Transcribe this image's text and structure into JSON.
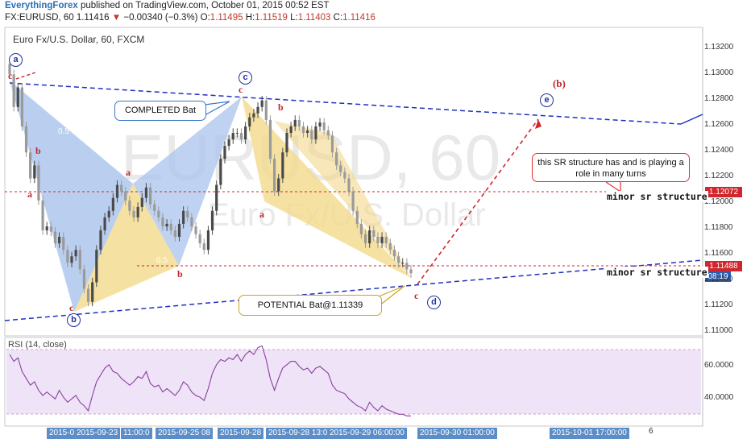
{
  "header": {
    "author": "EverythingForex",
    "published": "published on TradingView.com, October 01, 2015 00:52 EST",
    "symbol": "FX:EURUSD, 60",
    "last": "1.11416",
    "change": "−0.00340 (−0.3%)",
    "o_label": "O:",
    "o": "1.11495",
    "h_label": "H:",
    "h": "1.11519",
    "l_label": "L:",
    "l": "1.11403",
    "c_label": "C:",
    "c": "1.11416"
  },
  "chart_title": "Euro Fx/U.S. Dollar, 60, FXCM",
  "watermark": {
    "symbol": "EURUSD, 60",
    "name": "Euro Fx/U.S. Dollar"
  },
  "rsi_title": "RSI (14, close)",
  "annotations": {
    "completed": "COMPLETED Bat",
    "sr_note": "this SR structure has and is playing a role in many turns",
    "potential": "POTENTIAL Bat@1.11339",
    "minor_sr_1": "minor sr structure",
    "minor_sr_2": "minor sr structure"
  },
  "wave_points": {
    "a": "a",
    "b": "b",
    "c": "c",
    "d": "d",
    "e": "e",
    "b_paren": "(b)"
  },
  "price_tags": {
    "upper": "1.12072",
    "lower": "1.11488",
    "time": "08:19"
  },
  "y_axis_labels": [
    "1.13200",
    "1.13000",
    "1.12800",
    "1.12600",
    "1.12400",
    "1.12200",
    "1.12000",
    "1.11800",
    "1.11600",
    "1.11400",
    "1.11200",
    "1.11000"
  ],
  "rsi_axis_labels": [
    "60.0000",
    "40.0000"
  ],
  "x_axis_labels": [
    "2015-0",
    "2015-09-23",
    "11:00:0",
    "2015-09-25 08",
    "2015-09-28",
    "2015-09-28 13:0",
    "2015-09-29 06:00:00",
    "2015-09-30 01:00:00",
    "2015-10-01 17:00:00",
    "6"
  ],
  "fib_labels": [
    "0.5",
    "0.5"
  ],
  "colors": {
    "bull": "#4a4a4a",
    "bear": "#9a9a9a",
    "accent_blue": "#1f2fc4",
    "accent_red": "#d0262d",
    "bat_blue": "#a9c3ec",
    "bat_yellow": "#f3d98a",
    "rsi_band": "#efe3f7",
    "rsi_line": "#8a3f9e"
  },
  "chart_data": {
    "type": "line",
    "title": "Euro Fx/U.S. Dollar, 60, FXCM",
    "xlabel": "",
    "ylabel": "",
    "ylim": [
      1.1095,
      1.133
    ],
    "series": [
      {
        "name": "EURUSD",
        "values": [
          1.1295,
          1.127,
          1.1285,
          1.1255,
          1.1235,
          1.1215,
          1.1225,
          1.1198,
          1.1175,
          1.1178,
          1.1174,
          1.1165,
          1.117,
          1.116,
          1.115,
          1.1155,
          1.116,
          1.1145,
          1.113,
          1.112,
          1.1135,
          1.116,
          1.1175,
          1.1185,
          1.119,
          1.12,
          1.121,
          1.1205,
          1.1198,
          1.119,
          1.1185,
          1.1193,
          1.12,
          1.1208,
          1.1195,
          1.119,
          1.1185,
          1.1178,
          1.118,
          1.1175,
          1.117,
          1.118,
          1.119,
          1.1185,
          1.1178,
          1.1172,
          1.1165,
          1.116,
          1.1175,
          1.119,
          1.121,
          1.123,
          1.124,
          1.1245,
          1.125,
          1.125,
          1.1245,
          1.1255,
          1.1262,
          1.1265,
          1.127,
          1.1275,
          1.126,
          1.123,
          1.1205,
          1.1215,
          1.1235,
          1.125,
          1.1255,
          1.126,
          1.1255,
          1.125,
          1.1252,
          1.1245,
          1.1255,
          1.1258,
          1.1252,
          1.1248,
          1.1235,
          1.1225,
          1.122,
          1.1215,
          1.1205,
          1.119,
          1.118,
          1.1172,
          1.1165,
          1.1175,
          1.117,
          1.1165,
          1.117,
          1.1165,
          1.116,
          1.1155,
          1.115,
          1.115,
          1.1145,
          1.1142
        ]
      }
    ],
    "rsi": {
      "name": "RSI (14, close)",
      "ylim": [
        25,
        75
      ],
      "values": [
        66,
        62,
        64,
        56,
        52,
        48,
        50,
        45,
        42,
        44,
        42,
        40,
        45,
        41,
        38,
        40,
        42,
        38,
        36,
        33,
        42,
        50,
        54,
        58,
        60,
        56,
        55,
        52,
        50,
        48,
        50,
        53,
        52,
        56,
        49,
        47,
        48,
        44,
        46,
        44,
        42,
        45,
        50,
        48,
        44,
        42,
        41,
        39,
        46,
        55,
        60,
        63,
        62,
        64,
        63,
        66,
        62,
        66,
        68,
        66,
        70,
        71,
        63,
        52,
        45,
        52,
        58,
        60,
        62,
        62,
        59,
        57,
        58,
        55,
        58,
        59,
        57,
        55,
        48,
        45,
        44,
        43,
        40,
        38,
        36,
        35,
        33,
        38,
        35,
        33,
        36,
        34,
        33,
        32,
        31,
        31,
        30,
        30
      ]
    }
  }
}
